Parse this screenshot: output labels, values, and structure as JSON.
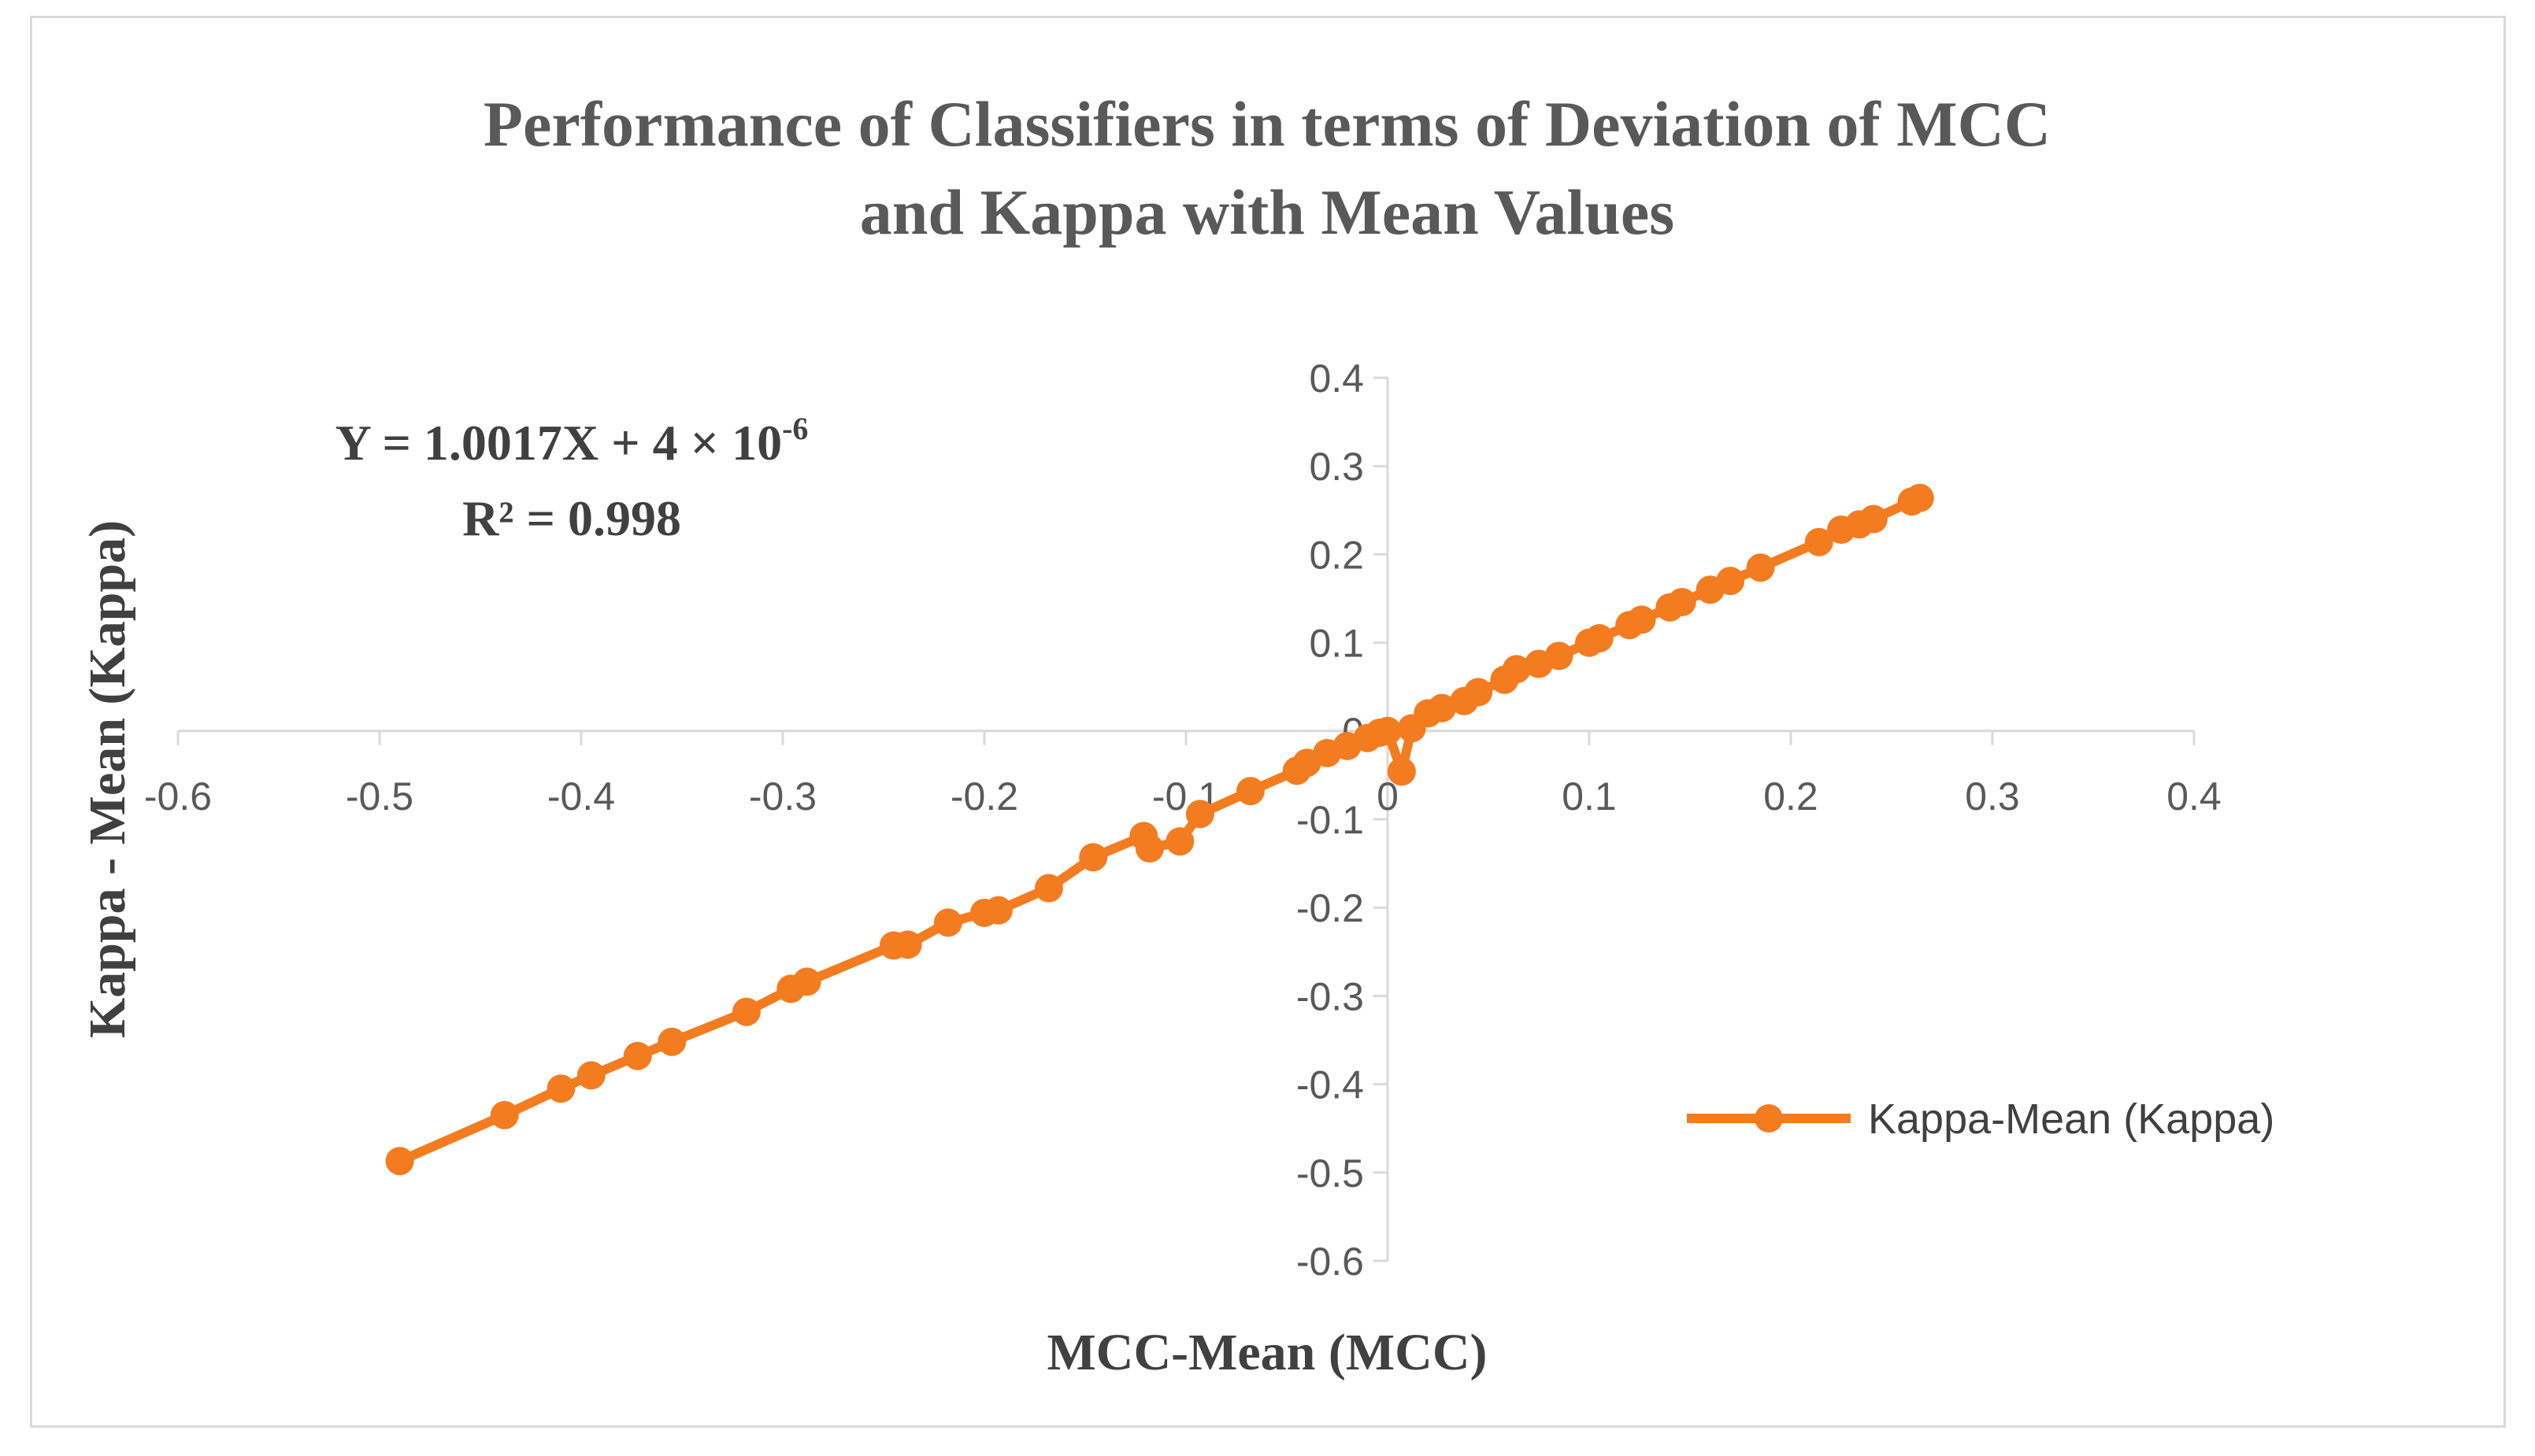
{
  "chart_data": {
    "type": "line",
    "title": [
      "Performance of Classifiers in terms of Deviation of MCC",
      "and Kappa with Mean Values"
    ],
    "xlabel": "MCC-Mean (MCC)",
    "ylabel": "Kappa - Mean (Kappa)",
    "xlim": [
      -0.6,
      0.4
    ],
    "ylim": [
      -0.6,
      0.4
    ],
    "x_ticks": [
      "-0.6",
      "-0.5",
      "-0.4",
      "-0.3",
      "-0.2",
      "-0.1",
      "0",
      "0.1",
      "0.2",
      "0.3",
      "0.4"
    ],
    "y_ticks": [
      "0.4",
      "0.3",
      "0.2",
      "0.1",
      "0",
      "-0.1",
      "-0.2",
      "-0.3",
      "-0.4",
      "-0.5",
      "-0.6"
    ],
    "grid": false,
    "legend_position": "right",
    "color": "#f47c20",
    "equation": {
      "line1_main": "Y = 1.0017X + 4 × 10",
      "line1_sup": "-6",
      "line2": "R² = 0.998"
    },
    "series": [
      {
        "name": "Kappa-Mean (Kappa)",
        "points": [
          [
            -0.49,
            -0.487
          ],
          [
            -0.438,
            -0.435
          ],
          [
            -0.41,
            -0.405
          ],
          [
            -0.395,
            -0.39
          ],
          [
            -0.372,
            -0.368
          ],
          [
            -0.355,
            -0.352
          ],
          [
            -0.318,
            -0.318
          ],
          [
            -0.296,
            -0.292
          ],
          [
            -0.288,
            -0.284
          ],
          [
            -0.245,
            -0.243
          ],
          [
            -0.238,
            -0.242
          ],
          [
            -0.218,
            -0.217
          ],
          [
            -0.2,
            -0.206
          ],
          [
            -0.193,
            -0.203
          ],
          [
            -0.168,
            -0.178
          ],
          [
            -0.146,
            -0.143
          ],
          [
            -0.121,
            -0.119
          ],
          [
            -0.118,
            -0.133
          ],
          [
            -0.103,
            -0.125
          ],
          [
            -0.093,
            -0.094
          ],
          [
            -0.068,
            -0.068
          ],
          [
            -0.045,
            -0.045
          ],
          [
            -0.04,
            -0.036
          ],
          [
            -0.03,
            -0.025
          ],
          [
            -0.02,
            -0.017
          ],
          [
            -0.01,
            -0.008
          ],
          [
            -0.004,
            -0.002
          ],
          [
            0,
            0
          ],
          [
            0.007,
            -0.046
          ],
          [
            0.012,
            0.003
          ],
          [
            0.02,
            0.02
          ],
          [
            0.027,
            0.026
          ],
          [
            0.038,
            0.034
          ],
          [
            0.045,
            0.044
          ],
          [
            0.058,
            0.058
          ],
          [
            0.064,
            0.07
          ],
          [
            0.075,
            0.076
          ],
          [
            0.085,
            0.085
          ],
          [
            0.1,
            0.1
          ],
          [
            0.105,
            0.105
          ],
          [
            0.12,
            0.12
          ],
          [
            0.126,
            0.126
          ],
          [
            0.14,
            0.14
          ],
          [
            0.146,
            0.146
          ],
          [
            0.16,
            0.16
          ],
          [
            0.17,
            0.17
          ],
          [
            0.185,
            0.185
          ],
          [
            0.214,
            0.214
          ],
          [
            0.225,
            0.228
          ],
          [
            0.234,
            0.234
          ],
          [
            0.241,
            0.24
          ],
          [
            0.26,
            0.26
          ],
          [
            0.264,
            0.264
          ]
        ]
      }
    ]
  }
}
